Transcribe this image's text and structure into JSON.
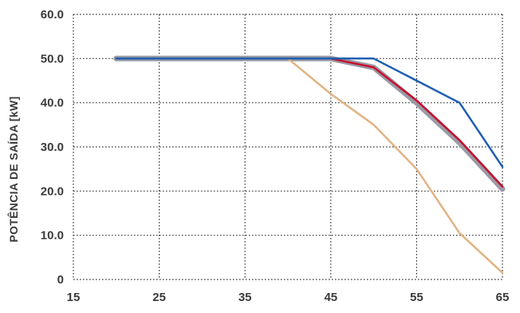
{
  "chart_data": {
    "type": "line",
    "title": "",
    "xlabel": "",
    "ylabel": "POTÊNCIA DE SAÍDA [kW]",
    "xlim": [
      15,
      65
    ],
    "ylim": [
      0,
      60
    ],
    "x_ticks": [
      "15",
      "25",
      "35",
      "45",
      "55",
      "65"
    ],
    "y_ticks": [
      "0",
      "10.0",
      "20.0",
      "30.0",
      "40.0",
      "50.0",
      "60.0"
    ],
    "grid": true,
    "legend": "none",
    "series": [
      {
        "color": "#9a9aa6",
        "width": 7,
        "points": [
          [
            20,
            50
          ],
          [
            45,
            50
          ],
          [
            50,
            48
          ],
          [
            55,
            40
          ],
          [
            60,
            31
          ],
          [
            65,
            20.5
          ]
        ]
      },
      {
        "color": "#e0b384",
        "width": 2.5,
        "points": [
          [
            40,
            50
          ],
          [
            45,
            42
          ],
          [
            50,
            35
          ],
          [
            55,
            25
          ],
          [
            60,
            10.5
          ],
          [
            65,
            1.5
          ]
        ]
      },
      {
        "color": "#c8102e",
        "width": 2.5,
        "points": [
          [
            20,
            50
          ],
          [
            45,
            50
          ],
          [
            50,
            48
          ],
          [
            55,
            40.5
          ],
          [
            60,
            31.5
          ],
          [
            65,
            21
          ]
        ]
      },
      {
        "color": "#1f5fb0",
        "width": 2.5,
        "points": [
          [
            20,
            50
          ],
          [
            50,
            50
          ],
          [
            55,
            45
          ],
          [
            60,
            40
          ],
          [
            65,
            25.5
          ]
        ]
      }
    ]
  }
}
